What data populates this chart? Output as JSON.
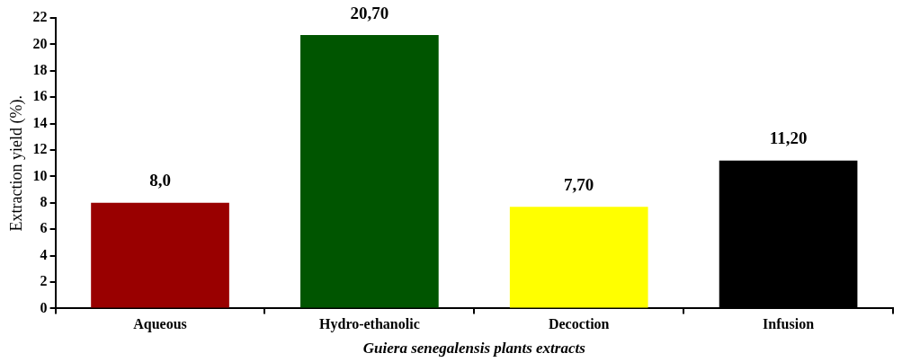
{
  "chart_data": {
    "type": "bar",
    "xlabel": "Guiera senegalensis plants extracts",
    "ylabel": "Extraction yield (%).",
    "categories": [
      "Aqueous",
      "Hydro-ethanolic",
      "Decoction",
      "Infusion"
    ],
    "values": [
      8.0,
      20.7,
      7.7,
      11.2
    ],
    "colors": [
      "#990000",
      "#005500",
      "#ffff00",
      "#000000"
    ],
    "value_labels": [
      "8,0",
      "20,70",
      "7,70",
      "11,20"
    ],
    "ylim": [
      0,
      22
    ],
    "yticks": [
      0,
      2,
      4,
      6,
      8,
      10,
      12,
      14,
      16,
      18,
      20,
      22
    ],
    "legend": false
  }
}
